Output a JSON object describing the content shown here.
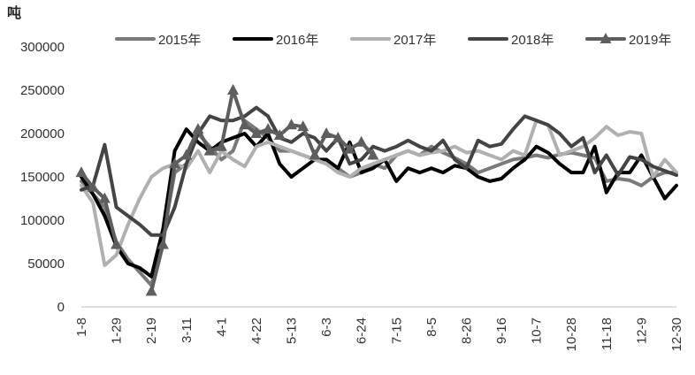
{
  "chart_data": {
    "type": "line",
    "unit_label": "吨",
    "ylim": [
      0,
      300000
    ],
    "y_ticks": [
      0,
      50000,
      100000,
      150000,
      200000,
      250000,
      300000
    ],
    "y_tick_labels": [
      "0",
      "50000",
      "100000",
      "150000",
      "200000",
      "250000",
      "300000"
    ],
    "x_tick_labels": [
      "1-8",
      "1-29",
      "2-19",
      "3-11",
      "4-1",
      "4-22",
      "5-13",
      "6-3",
      "6-24",
      "7-15",
      "8-5",
      "8-26",
      "9-16",
      "10-7",
      "10-28",
      "11-18",
      "12-9",
      "12-30"
    ],
    "n_points": 52,
    "grid": false,
    "legend_position": "top",
    "series": [
      {
        "name": "2015年",
        "color": "#7a7a7a",
        "marker": "none",
        "values": [
          145000,
          130000,
          115000,
          75000,
          55000,
          40000,
          25000,
          80000,
          155000,
          165000,
          200000,
          185000,
          170000,
          180000,
          215000,
          205000,
          195000,
          180000,
          180000,
          175000,
          170000,
          165000,
          160000,
          150000,
          155000,
          165000,
          160000,
          175000,
          180000,
          175000,
          185000,
          178000,
          172000,
          165000,
          155000,
          160000,
          165000,
          170000,
          172000,
          175000,
          172000,
          176000,
          178000,
          175000,
          172000,
          145000,
          148000,
          146000,
          140000,
          150000,
          155000,
          155000
        ]
      },
      {
        "name": "2016年",
        "color": "#000000",
        "marker": "none",
        "values": [
          150000,
          130000,
          105000,
          70000,
          50000,
          45000,
          35000,
          90000,
          180000,
          205000,
          190000,
          180000,
          190000,
          195000,
          200000,
          185000,
          200000,
          165000,
          150000,
          160000,
          170000,
          170000,
          160000,
          190000,
          155000,
          160000,
          170000,
          145000,
          160000,
          155000,
          160000,
          155000,
          163000,
          160000,
          150000,
          145000,
          148000,
          160000,
          170000,
          185000,
          178000,
          165000,
          155000,
          155000,
          185000,
          132000,
          155000,
          155000,
          175000,
          150000,
          125000,
          140000
        ]
      },
      {
        "name": "2017年",
        "color": "#b0b0b0",
        "marker": "none",
        "values": [
          140000,
          120000,
          48000,
          60000,
          95000,
          125000,
          150000,
          160000,
          165000,
          160000,
          180000,
          155000,
          180000,
          170000,
          162000,
          185000,
          190000,
          185000,
          180000,
          175000,
          170000,
          165000,
          155000,
          150000,
          160000,
          165000,
          170000,
          175000,
          180000,
          175000,
          178000,
          180000,
          185000,
          178000,
          180000,
          175000,
          170000,
          180000,
          175000,
          215000,
          210000,
          175000,
          180000,
          185000,
          195000,
          208000,
          198000,
          202000,
          200000,
          150000,
          170000,
          155000
        ]
      },
      {
        "name": "2018年",
        "color": "#444444",
        "marker": "none",
        "values": [
          135000,
          140000,
          187000,
          115000,
          105000,
          95000,
          83000,
          83000,
          115000,
          165000,
          200000,
          220000,
          215000,
          215000,
          220000,
          230000,
          220000,
          195000,
          190000,
          200000,
          195000,
          180000,
          195000,
          165000,
          170000,
          185000,
          180000,
          185000,
          192000,
          185000,
          180000,
          192000,
          170000,
          160000,
          192000,
          185000,
          188000,
          205000,
          220000,
          215000,
          210000,
          200000,
          185000,
          195000,
          155000,
          175000,
          152000,
          173000,
          170000,
          162000,
          157000,
          152000
        ]
      },
      {
        "name": "2019年",
        "color": "#5e5e5e",
        "marker": "triangle",
        "values": [
          155000,
          138000,
          125000,
          72000,
          null,
          null,
          18000,
          72000,
          165000,
          175000,
          205000,
          180000,
          185000,
          250000,
          210000,
          200000,
          205000,
          198000,
          210000,
          208000,
          175000,
          200000,
          195000,
          182000,
          190000,
          175000
        ]
      }
    ]
  }
}
